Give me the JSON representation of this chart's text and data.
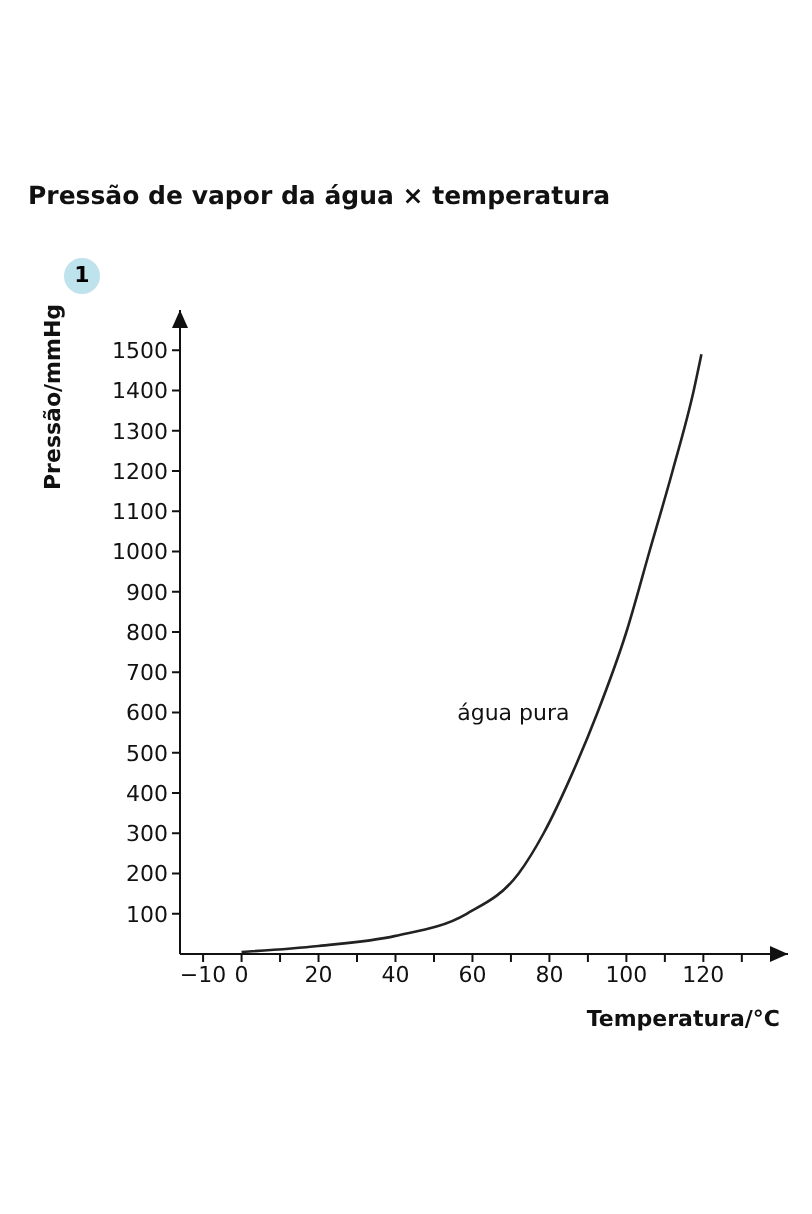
{
  "chart_data": {
    "type": "line",
    "title": "Pressão de vapor da água × temperatura",
    "subtitle": "1",
    "xlabel": "Temperatura/°C",
    "ylabel": "Pressão/mmHg",
    "x": [
      0,
      20,
      40,
      58.5,
      72,
      78.5,
      86,
      92.5,
      100,
      106,
      112,
      117.5,
      119.5
    ],
    "series": [
      {
        "name": "água pura",
        "color": "#222222",
        "values": [
          5,
          20,
          45,
          100,
          200,
          300,
          450,
          600,
          800,
          1000,
          1200,
          1400,
          1490
        ]
      }
    ],
    "xlim": [
      -16,
      142
    ],
    "xticks": [
      -10,
      0,
      {
        "value": 10,
        "label": null
      },
      20,
      {
        "value": 30,
        "label": null
      },
      40,
      {
        "value": 50,
        "label": null
      },
      60,
      {
        "value": 70,
        "label": null
      },
      80,
      {
        "value": 90,
        "label": null
      },
      100,
      {
        "value": 110,
        "label": null
      },
      120,
      {
        "value": 130,
        "label": null
      }
    ],
    "ylim": [
      0,
      1600
    ],
    "yticks": [
      100,
      200,
      300,
      400,
      500,
      600,
      700,
      800,
      900,
      1000,
      1100,
      1200,
      1300,
      1400,
      1500
    ],
    "grid": false,
    "legend": false,
    "marker": "none",
    "line_style": "solid"
  }
}
